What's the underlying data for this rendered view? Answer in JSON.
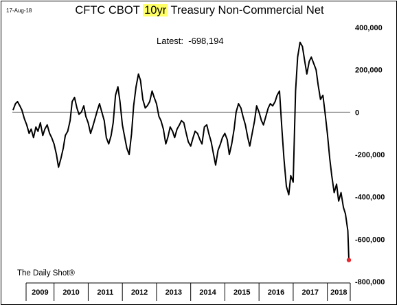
{
  "header": {
    "date": "17-Aug-18",
    "title_pre": "CFTC CBOT ",
    "title_highlight": "10yr",
    "title_post": " Treasury Non-Commercial Net",
    "latest_label": "Latest:",
    "latest_value": "-698,194"
  },
  "footer": {
    "source": "The Daily Shot®"
  },
  "colors": {
    "line": "#000000",
    "last_point": "#e8262d",
    "highlight": "#ffff66"
  },
  "chart_data": {
    "type": "line",
    "title": "CFTC CBOT 10yr Treasury Non-Commercial Net",
    "ylim": [
      -800000,
      400000
    ],
    "xlim": [
      2008.78,
      2018.67
    ],
    "y_axis_side": "right",
    "grid": false,
    "zero_line": true,
    "yticks": [
      400000,
      200000,
      0,
      -200000,
      -400000,
      -600000,
      -800000
    ],
    "ytick_labels": [
      "400,000",
      "200,000",
      "0",
      "-200,000",
      "-400,000",
      "-600,000",
      "-800,000"
    ],
    "x_category_labels": [
      "2009",
      "2010",
      "2011",
      "2012",
      "2013",
      "2014",
      "2015",
      "2016",
      "2017",
      "2018"
    ],
    "x_boundaries": [
      2009.0,
      2010.0,
      2011.0,
      2012.0,
      2013.0,
      2014.0,
      2015.0,
      2016.0,
      2017.0,
      2018.0
    ],
    "latest": {
      "x": 2018.63,
      "y": -698194
    },
    "series": [
      {
        "x": [
          2008.8,
          2008.87,
          2008.93,
          2009.0,
          2009.06,
          2009.13,
          2009.2,
          2009.27,
          2009.33,
          2009.4,
          2009.47,
          2009.53,
          2009.6,
          2009.67,
          2009.73,
          2009.8,
          2009.87,
          2009.93,
          2010.0,
          2010.07,
          2010.13,
          2010.2,
          2010.27,
          2010.33,
          2010.4,
          2010.47,
          2010.53,
          2010.6,
          2010.67,
          2010.73,
          2010.8,
          2010.87,
          2010.93,
          2011.0,
          2011.07,
          2011.13,
          2011.2,
          2011.27,
          2011.33,
          2011.4,
          2011.47,
          2011.53,
          2011.6,
          2011.67,
          2011.73,
          2011.8,
          2011.87,
          2011.93,
          2012.0,
          2012.07,
          2012.13,
          2012.2,
          2012.27,
          2012.33,
          2012.4,
          2012.47,
          2012.53,
          2012.6,
          2012.67,
          2012.73,
          2012.8,
          2012.87,
          2012.93,
          2013.0,
          2013.07,
          2013.13,
          2013.2,
          2013.27,
          2013.33,
          2013.4,
          2013.47,
          2013.53,
          2013.6,
          2013.67,
          2013.73,
          2013.8,
          2013.87,
          2013.93,
          2014.0,
          2014.07,
          2014.13,
          2014.2,
          2014.27,
          2014.33,
          2014.4,
          2014.47,
          2014.53,
          2014.6,
          2014.67,
          2014.73,
          2014.8,
          2014.87,
          2014.93,
          2015.0,
          2015.07,
          2015.13,
          2015.2,
          2015.27,
          2015.33,
          2015.4,
          2015.47,
          2015.53,
          2015.6,
          2015.67,
          2015.73,
          2015.8,
          2015.87,
          2015.93,
          2016.0,
          2016.07,
          2016.13,
          2016.2,
          2016.27,
          2016.33,
          2016.4,
          2016.47,
          2016.53,
          2016.6,
          2016.67,
          2016.73,
          2016.8,
          2016.87,
          2016.93,
          2017.0,
          2017.07,
          2017.13,
          2017.2,
          2017.27,
          2017.33,
          2017.4,
          2017.47,
          2017.53,
          2017.6,
          2017.67,
          2017.73,
          2017.8,
          2017.87,
          2017.93,
          2018.0,
          2018.07,
          2018.13,
          2018.2,
          2018.27,
          2018.33,
          2018.4,
          2018.47,
          2018.53,
          2018.6,
          2018.63
        ],
        "values": [
          10000,
          40000,
          50000,
          30000,
          10000,
          -30000,
          -60000,
          -100000,
          -80000,
          -120000,
          -70000,
          -90000,
          -50000,
          -110000,
          -80000,
          -60000,
          -100000,
          -120000,
          -150000,
          -200000,
          -260000,
          -220000,
          -170000,
          -110000,
          -90000,
          -40000,
          50000,
          70000,
          20000,
          -10000,
          0,
          30000,
          -20000,
          -50000,
          -100000,
          -70000,
          -30000,
          10000,
          40000,
          0,
          -40000,
          -120000,
          -150000,
          -110000,
          -50000,
          80000,
          120000,
          50000,
          -60000,
          -120000,
          -170000,
          -200000,
          -100000,
          30000,
          120000,
          180000,
          150000,
          60000,
          20000,
          30000,
          50000,
          100000,
          70000,
          40000,
          -20000,
          -40000,
          -80000,
          -150000,
          -120000,
          -70000,
          -90000,
          -120000,
          -80000,
          -60000,
          -40000,
          -50000,
          -100000,
          -140000,
          -160000,
          -120000,
          -90000,
          -100000,
          -130000,
          -150000,
          -70000,
          -60000,
          -100000,
          -140000,
          -200000,
          -250000,
          -180000,
          -150000,
          -120000,
          -100000,
          -130000,
          -200000,
          -150000,
          -80000,
          0,
          40000,
          20000,
          -20000,
          -60000,
          -120000,
          -160000,
          -100000,
          -40000,
          30000,
          0,
          -40000,
          -60000,
          -20000,
          20000,
          40000,
          30000,
          50000,
          80000,
          100000,
          -80000,
          -220000,
          -350000,
          -390000,
          -300000,
          -330000,
          100000,
          260000,
          330000,
          310000,
          250000,
          180000,
          240000,
          260000,
          230000,
          200000,
          130000,
          60000,
          80000,
          0,
          -100000,
          -220000,
          -300000,
          -380000,
          -340000,
          -420000,
          -380000,
          -450000,
          -480000,
          -560000,
          -698194
        ]
      }
    ]
  }
}
